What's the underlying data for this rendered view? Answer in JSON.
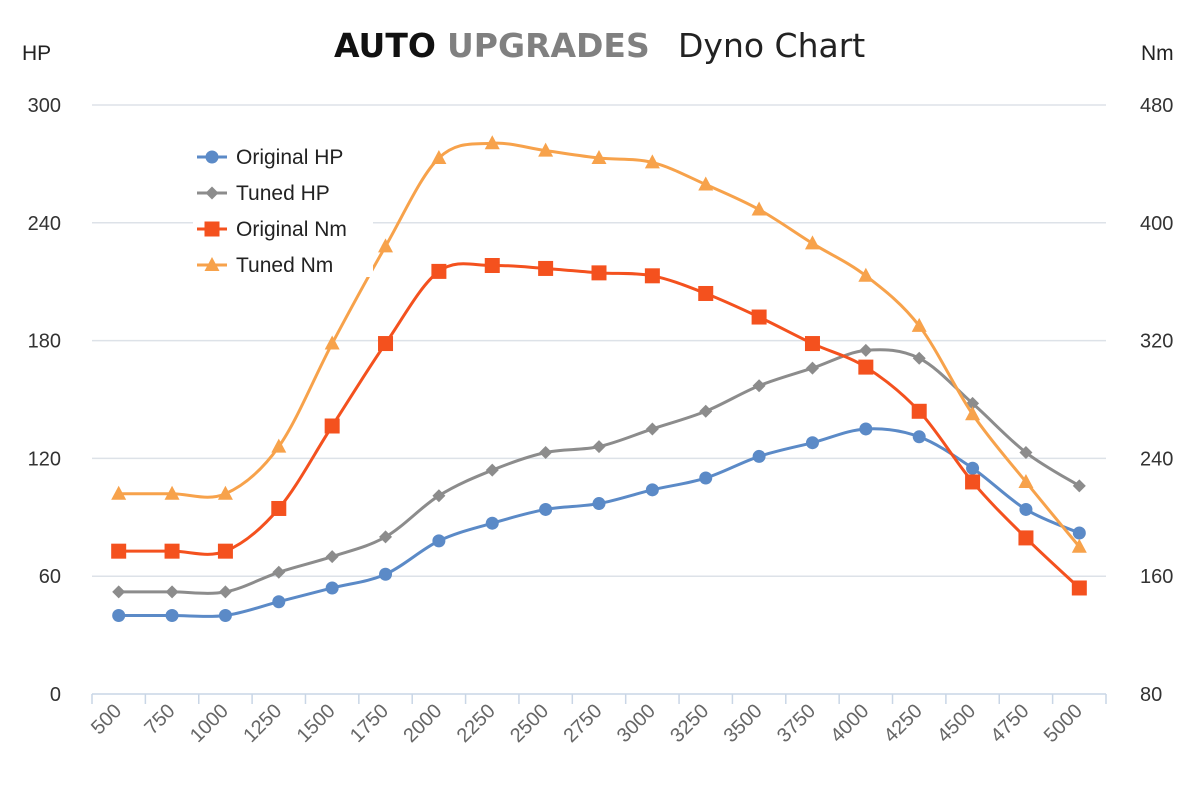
{
  "title": {
    "brand_part1": "AUTO",
    "brand_part2": "UPGRADES",
    "main": "Dyno Chart"
  },
  "chart_data": {
    "type": "line",
    "categories": [
      "500",
      "750",
      "1000",
      "1250",
      "1500",
      "1750",
      "2000",
      "2250",
      "2500",
      "2750",
      "3000",
      "3250",
      "3500",
      "3750",
      "4000",
      "4250",
      "4500",
      "4750",
      "5000"
    ],
    "xlabel": "",
    "y_left": {
      "label": "HP",
      "ylim": [
        0,
        300
      ],
      "ticks": [
        0,
        60,
        120,
        180,
        240,
        300
      ]
    },
    "y_right": {
      "label": "Nm",
      "ylim": [
        80,
        480
      ],
      "ticks": [
        80,
        160,
        240,
        320,
        400,
        480
      ]
    },
    "grid": true,
    "legend_position": "top-left",
    "series": [
      {
        "name": "Original HP",
        "axis": "left",
        "color": "#5b8ac7",
        "marker": "circle",
        "values": [
          40,
          40,
          40,
          47,
          54,
          61,
          78,
          87,
          94,
          97,
          104,
          110,
          121,
          128,
          135,
          131,
          115,
          94,
          82
        ]
      },
      {
        "name": "Tuned HP",
        "axis": "left",
        "color": "#8c8c8c",
        "marker": "diamond",
        "values": [
          52,
          52,
          52,
          62,
          70,
          80,
          101,
          114,
          123,
          126,
          135,
          144,
          157,
          166,
          175,
          171,
          148,
          123,
          106
        ]
      },
      {
        "name": "Original Nm",
        "axis": "right",
        "color": "#f4511e",
        "marker": "square",
        "values": [
          177,
          177,
          177,
          206,
          262,
          318,
          367,
          371,
          369,
          366,
          364,
          352,
          336,
          318,
          302,
          272,
          224,
          186,
          152
        ]
      },
      {
        "name": "Tuned Nm",
        "axis": "right",
        "color": "#f7a24b",
        "marker": "triangle",
        "values": [
          216,
          216,
          216,
          248,
          318,
          384,
          444,
          454,
          449,
          444,
          441,
          426,
          409,
          386,
          364,
          330,
          270,
          224,
          180
        ]
      }
    ]
  }
}
